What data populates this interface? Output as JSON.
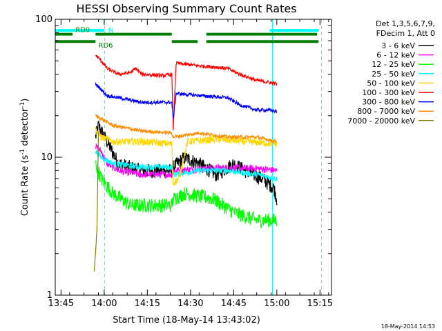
{
  "chart_data": {
    "type": "line",
    "title": "HESSI Observing Summary Count Rates",
    "xlabel": "Start Time (18-May-14 13:43:02)",
    "ylabel_main": "Count Rate (s",
    "ylabel_sup": "-1",
    "ylabel_tail": " detector",
    "ylabel_sup2": "-1",
    "ylabel_close": ")",
    "x_unit": "minutes after 13:43:02",
    "xlim": [
      0,
      96
    ],
    "ylim": [
      1,
      100
    ],
    "yscale": "log",
    "x_ticks": [
      {
        "label": "13:45",
        "x": 2
      },
      {
        "label": "14:00",
        "x": 17
      },
      {
        "label": "14:15",
        "x": 32
      },
      {
        "label": "14:30",
        "x": 47
      },
      {
        "label": "14:45",
        "x": 62
      },
      {
        "label": "15:00",
        "x": 77
      },
      {
        "label": "15:15",
        "x": 92
      }
    ],
    "y_ticks": [
      {
        "label": "1",
        "y": 1
      },
      {
        "label": "10",
        "y": 10
      },
      {
        "label": "100",
        "y": 100
      }
    ],
    "legend": {
      "header": [
        "Det 1,3,5,6,7,9,",
        "FDecim 1, Att 0"
      ],
      "position": "right"
    },
    "flags": [
      {
        "name": "N",
        "color": "#00ffff",
        "y": 83,
        "segments": [
          [
            0,
            17
          ],
          [
            74.5,
            91.5
          ]
        ],
        "label_x": 18.5
      },
      {
        "name": "RD0",
        "color": "#008000",
        "y": 78,
        "segments": [
          [
            0,
            6
          ],
          [
            14,
            40.5
          ],
          [
            52.5,
            91
          ]
        ],
        "label_x": 7
      },
      {
        "name": "RD6",
        "color": "#008000",
        "y": 69,
        "segments": [
          [
            0,
            14
          ],
          [
            40.5,
            49.5
          ],
          [
            52.5,
            91.5
          ]
        ],
        "label_x": 15
      }
    ],
    "vlines": [
      {
        "x": 0,
        "color": "#00ffff",
        "style": "solid"
      },
      {
        "x": 17.2,
        "color": "#00ffff",
        "style": "dashed"
      },
      {
        "x": 75.5,
        "color": "#00ffff",
        "style": "solid"
      },
      {
        "x": 92.5,
        "color": "#00ffff",
        "style": "dashed"
      }
    ],
    "series": [
      {
        "name": "3 - 6 keV",
        "color": "#000000",
        "noise": 0.12,
        "points": [
          [
            14,
            14
          ],
          [
            15,
            17
          ],
          [
            18,
            13
          ],
          [
            22,
            9
          ],
          [
            30,
            8
          ],
          [
            40.5,
            8
          ],
          [
            41,
            8.5
          ],
          [
            45,
            10
          ],
          [
            50,
            9
          ],
          [
            56,
            7.5
          ],
          [
            62,
            9
          ],
          [
            66,
            8
          ],
          [
            72,
            7
          ],
          [
            76,
            6
          ],
          [
            77,
            5
          ]
        ]
      },
      {
        "name": "6 - 12 keV",
        "color": "#ff00ff",
        "noise": 0.06,
        "points": [
          [
            14,
            12
          ],
          [
            16,
            11
          ],
          [
            18,
            9
          ],
          [
            22,
            8
          ],
          [
            30,
            7.5
          ],
          [
            40.5,
            7.5
          ],
          [
            41,
            8
          ],
          [
            50,
            8.2
          ],
          [
            60,
            8.4
          ],
          [
            70,
            8.3
          ],
          [
            77,
            8
          ]
        ]
      },
      {
        "name": "12 - 25 keV",
        "color": "#00ff00",
        "noise": 0.12,
        "points": [
          [
            14,
            9
          ],
          [
            16,
            7
          ],
          [
            20,
            5.5
          ],
          [
            26,
            4.5
          ],
          [
            35,
            4.5
          ],
          [
            40.5,
            4.5
          ],
          [
            41,
            5
          ],
          [
            45,
            5.5
          ],
          [
            55,
            5
          ],
          [
            62,
            4
          ],
          [
            70,
            3.5
          ],
          [
            77,
            3.5
          ]
        ]
      },
      {
        "name": "25 - 50 keV",
        "color": "#00ffff",
        "noise": 0.05,
        "points": [
          [
            14,
            11
          ],
          [
            16,
            10
          ],
          [
            20,
            9
          ],
          [
            30,
            8.5
          ],
          [
            40.5,
            8.5
          ],
          [
            41,
            7.5
          ],
          [
            50,
            8
          ],
          [
            60,
            8
          ],
          [
            70,
            7.5
          ],
          [
            77,
            7
          ]
        ]
      },
      {
        "name": "50 - 100 keV",
        "color": "#ffd700",
        "noise": 0.06,
        "points": [
          [
            14,
            16
          ],
          [
            16,
            14
          ],
          [
            20,
            13
          ],
          [
            30,
            13
          ],
          [
            40.5,
            12.5
          ],
          [
            41,
            6.5
          ],
          [
            43,
            7
          ],
          [
            46,
            13
          ],
          [
            56,
            13.5
          ],
          [
            66,
            13
          ],
          [
            77,
            12.5
          ]
        ]
      },
      {
        "name": "100 - 300 keV",
        "color": "#ff0000",
        "noise": 0.03,
        "points": [
          [
            14,
            55
          ],
          [
            16,
            50
          ],
          [
            18,
            44
          ],
          [
            22,
            40
          ],
          [
            26,
            41
          ],
          [
            28,
            44
          ],
          [
            30,
            40
          ],
          [
            38,
            39
          ],
          [
            40.5,
            40
          ],
          [
            41,
            16
          ],
          [
            42,
            48
          ],
          [
            50,
            46
          ],
          [
            56,
            45
          ],
          [
            60,
            44
          ],
          [
            64,
            40
          ],
          [
            67,
            38
          ],
          [
            70,
            36
          ],
          [
            74,
            35
          ],
          [
            77,
            34
          ]
        ]
      },
      {
        "name": "300 - 800 keV",
        "color": "#0000ff",
        "noise": 0.03,
        "points": [
          [
            14,
            34
          ],
          [
            16,
            31
          ],
          [
            18,
            28
          ],
          [
            22,
            27
          ],
          [
            30,
            25
          ],
          [
            40.5,
            25
          ],
          [
            41,
            19
          ],
          [
            42,
            29
          ],
          [
            50,
            28
          ],
          [
            60,
            27
          ],
          [
            64,
            24
          ],
          [
            70,
            22
          ],
          [
            74,
            22
          ],
          [
            77,
            21.5
          ]
        ]
      },
      {
        "name": "800 - 7000 keV",
        "color": "#ff8c00",
        "noise": 0.03,
        "points": [
          [
            14,
            20
          ],
          [
            16,
            19
          ],
          [
            20,
            17
          ],
          [
            30,
            15.5
          ],
          [
            40.5,
            15
          ],
          [
            41,
            14
          ],
          [
            50,
            15
          ],
          [
            60,
            14
          ],
          [
            70,
            14
          ],
          [
            77,
            13
          ]
        ]
      },
      {
        "name": "7000 - 20000 keV",
        "color": "#808000",
        "noise": 0.02,
        "points": [
          [
            13.5,
            1.5
          ],
          [
            14,
            2
          ],
          [
            14.5,
            3
          ],
          [
            15,
            15
          ]
        ]
      }
    ]
  },
  "footer": {
    "date_stamp": "18-May-2014 14:53"
  }
}
